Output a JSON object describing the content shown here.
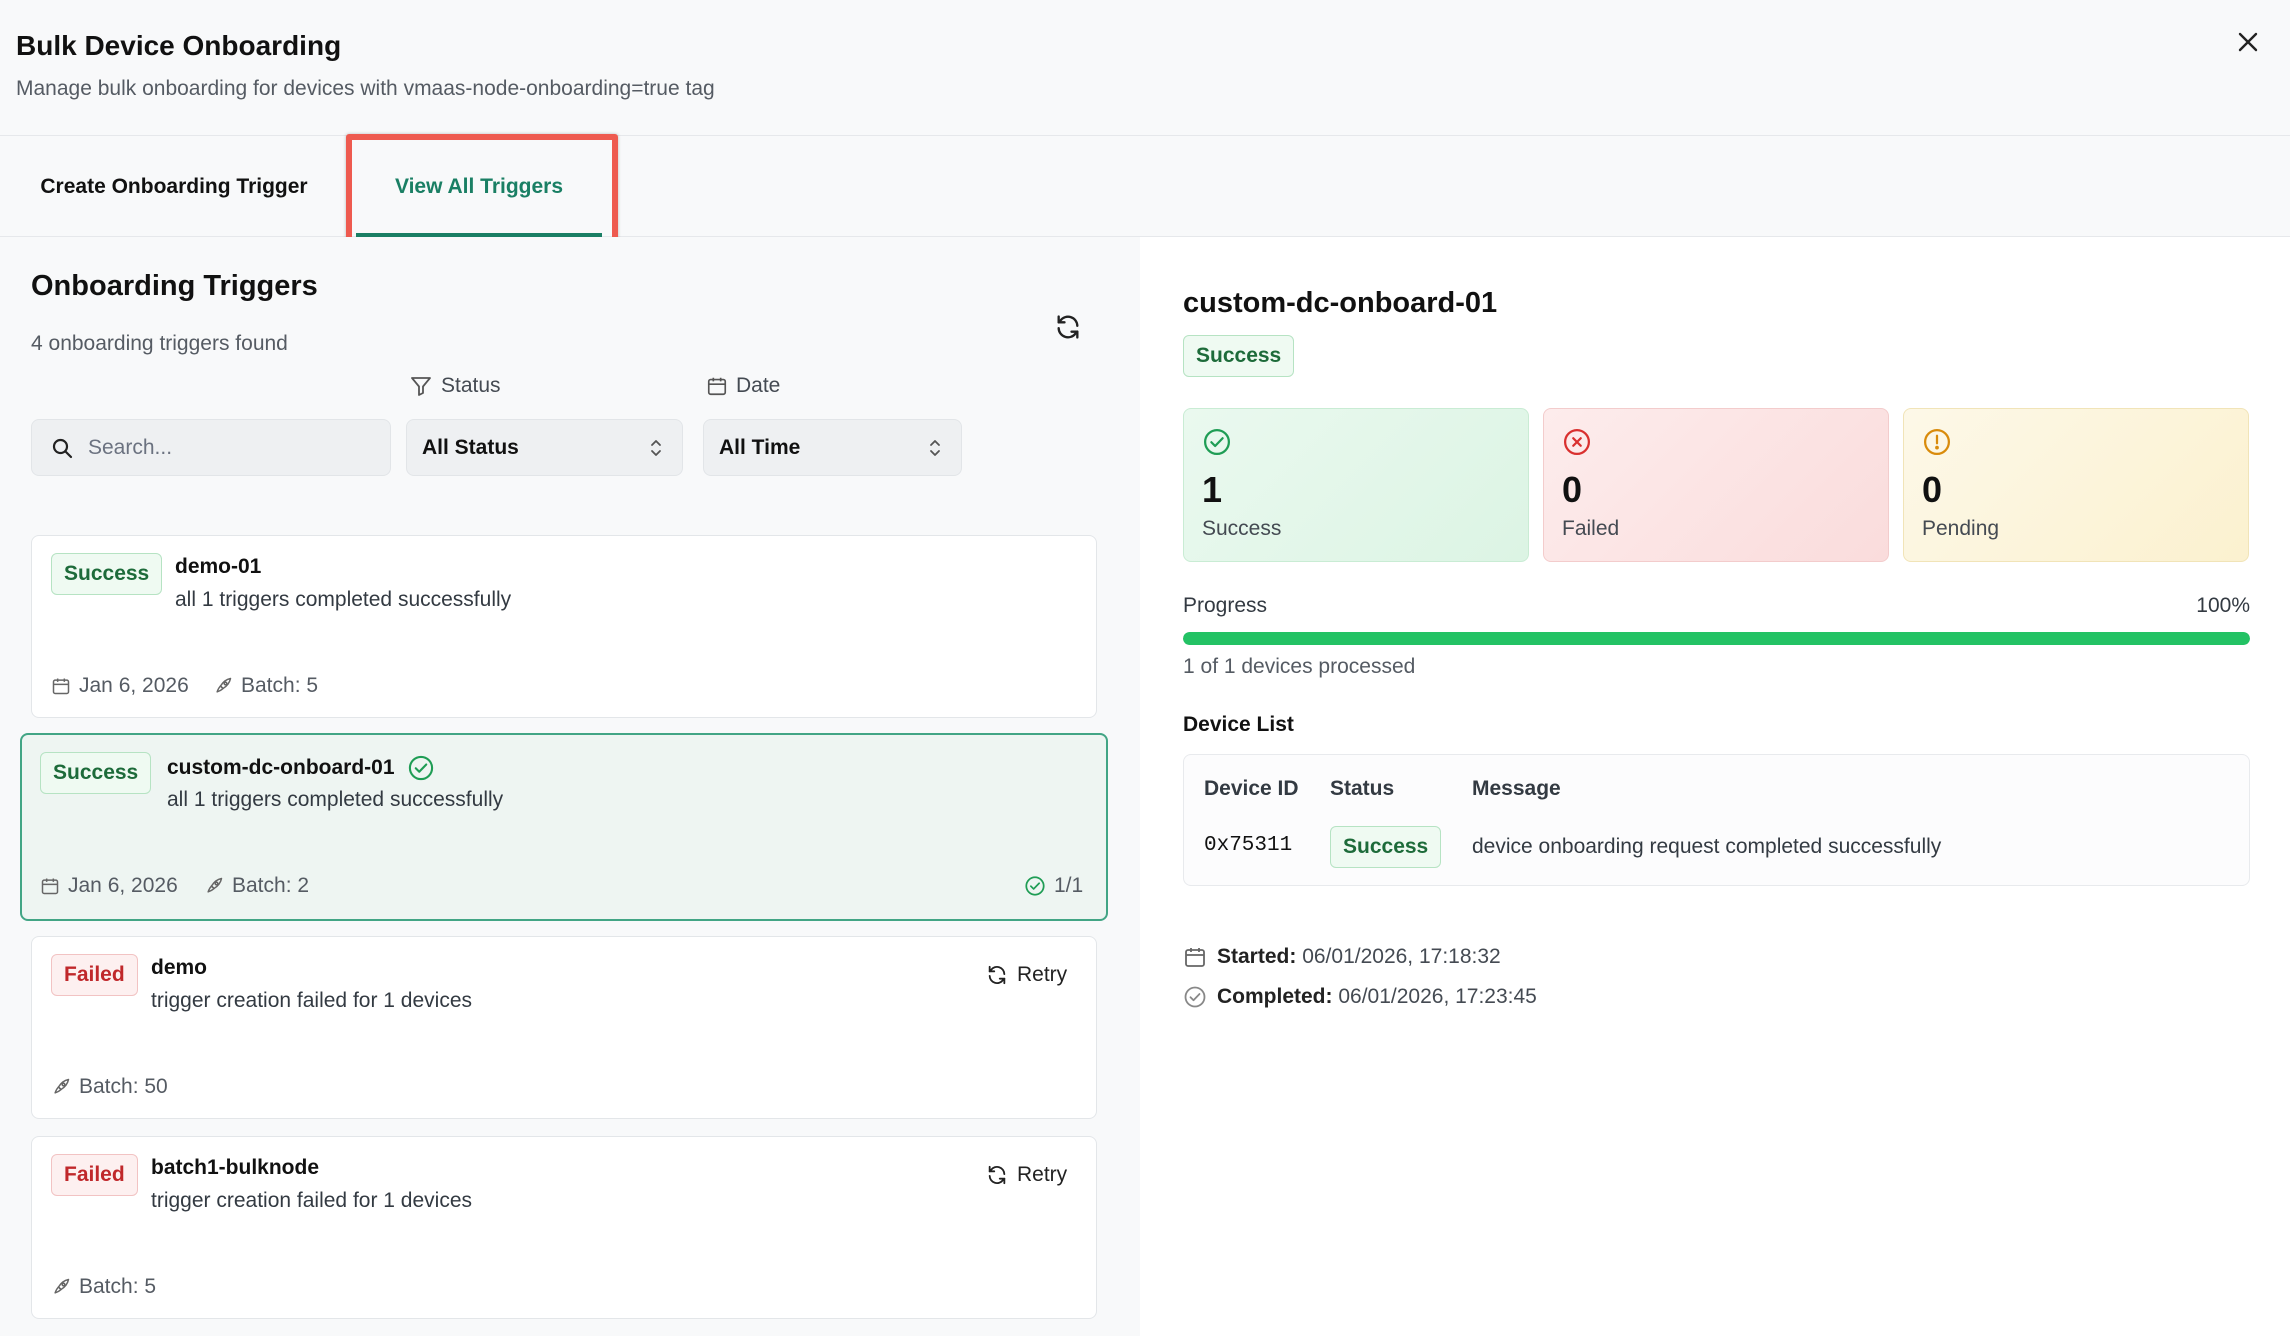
{
  "dialog": {
    "title": "Bulk Device Onboarding",
    "subtitle": "Manage bulk onboarding for devices with vmaas-node-onboarding=true tag"
  },
  "tabs": [
    {
      "label": "Create Onboarding Trigger",
      "active": false
    },
    {
      "label": "View All Triggers",
      "active": true
    }
  ],
  "left": {
    "title": "Onboarding Triggers",
    "count_text": "4 onboarding triggers found",
    "filters": {
      "status_label": "Status",
      "date_label": "Date",
      "search_placeholder": "Search...",
      "status_value": "All Status",
      "date_value": "All Time"
    },
    "triggers": [
      {
        "status": "Success",
        "name": "demo-01",
        "message": "all 1 triggers completed successfully",
        "date": "Jan 6, 2026",
        "batch": "Batch: 5"
      },
      {
        "status": "Success",
        "name": "custom-dc-onboard-01",
        "message": "all 1 triggers completed successfully",
        "date": "Jan 6, 2026",
        "batch": "Batch: 2",
        "progress": "1/1",
        "selected": true
      },
      {
        "status": "Failed",
        "name": "demo",
        "message": "trigger creation failed for 1 devices",
        "batch": "Batch: 50",
        "retry": "Retry"
      },
      {
        "status": "Failed",
        "name": "batch1-bulknode",
        "message": "trigger creation failed for 1 devices",
        "batch": "Batch: 5",
        "retry": "Retry"
      }
    ]
  },
  "detail": {
    "title": "custom-dc-onboard-01",
    "status": "Success",
    "stats": {
      "success": {
        "value": "1",
        "label": "Success"
      },
      "failed": {
        "value": "0",
        "label": "Failed"
      },
      "pending": {
        "value": "0",
        "label": "Pending"
      }
    },
    "progress": {
      "label": "Progress",
      "percent_text": "100%",
      "fraction": 1.0,
      "sub": "1 of 1 devices processed"
    },
    "device_list": {
      "title": "Device List",
      "columns": [
        "Device ID",
        "Status",
        "Message"
      ],
      "rows": [
        {
          "device_id": "0x75311",
          "status": "Success",
          "message": "device onboarding request completed successfully"
        }
      ]
    },
    "started_label": "Started:",
    "started_value": "06/01/2026, 17:18:32",
    "completed_label": "Completed:",
    "completed_value": "06/01/2026, 17:23:45"
  },
  "colors": {
    "accent": "#1a7f64",
    "success": "#23c264",
    "failed": "#c0282b",
    "pending": "#d98b0b",
    "highlight": "#ee5a4f"
  }
}
